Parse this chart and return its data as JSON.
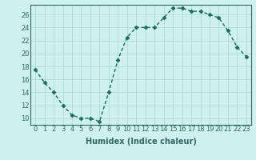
{
  "x": [
    0,
    1,
    2,
    3,
    4,
    5,
    6,
    7,
    8,
    9,
    10,
    11,
    12,
    13,
    14,
    15,
    16,
    17,
    18,
    19,
    20,
    21,
    22,
    23
  ],
  "y": [
    17.5,
    15.5,
    14.0,
    12.0,
    10.5,
    10.0,
    10.0,
    9.5,
    14.0,
    19.0,
    22.5,
    24.0,
    24.0,
    24.0,
    25.5,
    27.0,
    27.0,
    26.5,
    26.5,
    26.0,
    25.5,
    23.5,
    21.0,
    19.5
  ],
  "line_color": "#1a6b5a",
  "marker": "D",
  "marker_size": 2.5,
  "background_color": "#cff0f0",
  "grid_color": "#aedada",
  "xlabel": "Humidex (Indice chaleur)",
  "ylabel": "",
  "ylim": [
    9,
    27.5
  ],
  "xlim": [
    -0.5,
    23.5
  ],
  "yticks": [
    10,
    12,
    14,
    16,
    18,
    20,
    22,
    24,
    26
  ],
  "xticks": [
    0,
    1,
    2,
    3,
    4,
    5,
    6,
    7,
    8,
    9,
    10,
    11,
    12,
    13,
    14,
    15,
    16,
    17,
    18,
    19,
    20,
    21,
    22,
    23
  ],
  "xlabel_fontsize": 7,
  "tick_fontsize": 6,
  "line_width": 1.0,
  "spine_color": "#336666"
}
